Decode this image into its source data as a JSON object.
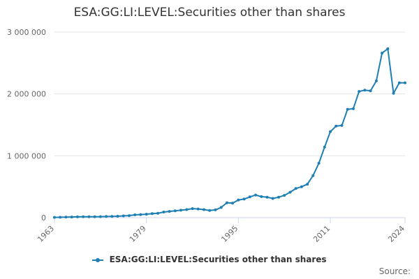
{
  "chart_data": {
    "type": "line",
    "title": "ESA:GG:LI:LEVEL:Securities other than shares",
    "xlabel": "",
    "ylabel": "",
    "x": [
      1963,
      1964,
      1965,
      1966,
      1967,
      1968,
      1969,
      1970,
      1971,
      1972,
      1973,
      1974,
      1975,
      1976,
      1977,
      1978,
      1979,
      1980,
      1981,
      1982,
      1983,
      1984,
      1985,
      1986,
      1987,
      1988,
      1989,
      1990,
      1991,
      1992,
      1993,
      1994,
      1995,
      1996,
      1997,
      1998,
      1999,
      2000,
      2001,
      2002,
      2003,
      2004,
      2005,
      2006,
      2007,
      2008,
      2009,
      2010,
      2011,
      2012,
      2013,
      2014,
      2015,
      2016,
      2017,
      2018,
      2019,
      2020,
      2021,
      2022,
      2023,
      2024
    ],
    "series": [
      {
        "name": "ESA:GG:LI:LEVEL:Securities other than shares",
        "color": "#1f7fb4",
        "values": [
          5000,
          6000,
          8000,
          10000,
          12000,
          13000,
          14000,
          15000,
          16000,
          18000,
          20000,
          23000,
          28000,
          33000,
          45000,
          50000,
          55000,
          65000,
          70000,
          90000,
          100000,
          110000,
          120000,
          130000,
          145000,
          140000,
          130000,
          115000,
          125000,
          165000,
          240000,
          235000,
          285000,
          300000,
          335000,
          365000,
          340000,
          330000,
          310000,
          330000,
          360000,
          410000,
          470000,
          500000,
          540000,
          680000,
          880000,
          1140000,
          1390000,
          1480000,
          1490000,
          1750000,
          1760000,
          2040000,
          2060000,
          2050000,
          2210000,
          2660000,
          2730000,
          2010000,
          2180000,
          2180000
        ]
      }
    ],
    "xlim": [
      1963,
      2024
    ],
    "ylim": [
      0,
      3000000
    ],
    "x_ticks": [
      1963,
      1979,
      1995,
      2011,
      2024
    ],
    "x_tick_labels": [
      "1963",
      "1979",
      "1995",
      "2011",
      "2024"
    ],
    "y_ticks": [
      0,
      1000000,
      2000000,
      3000000
    ],
    "y_tick_labels": [
      "0",
      "1 000 000",
      "2 000 000",
      "3 000 000"
    ],
    "grid": true,
    "legend": "bottom-center"
  },
  "legend_label": "ESA:GG:LI:LEVEL:Securities other than shares",
  "source_label": "Source:"
}
